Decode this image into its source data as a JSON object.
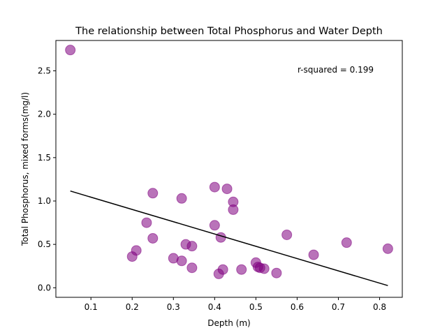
{
  "chart_data": {
    "type": "scatter",
    "title": "The relationship between Total Phosphorus and Water Depth",
    "xlabel": "Depth (m)",
    "ylabel": "Total Phosphorus, mixed forms(mg/l)",
    "xlim": [
      0.015,
      0.855
    ],
    "ylim": [
      -0.11,
      2.85
    ],
    "x_ticks": [
      0.1,
      0.2,
      0.3,
      0.4,
      0.5,
      0.6,
      0.7,
      0.8
    ],
    "x_tick_labels": [
      "0.1",
      "0.2",
      "0.3",
      "0.4",
      "0.5",
      "0.6",
      "0.7",
      "0.8"
    ],
    "y_ticks": [
      0.0,
      0.5,
      1.0,
      1.5,
      2.0,
      2.5
    ],
    "y_tick_labels": [
      "0.0",
      "0.5",
      "1.0",
      "1.5",
      "2.0",
      "2.5"
    ],
    "annotation": "r-squared = 0.199",
    "grid": false,
    "marker_color": "#800080",
    "line_color": "#000000",
    "points": [
      {
        "x": 0.05,
        "y": 2.74
      },
      {
        "x": 0.2,
        "y": 0.36
      },
      {
        "x": 0.21,
        "y": 0.43
      },
      {
        "x": 0.235,
        "y": 0.75
      },
      {
        "x": 0.25,
        "y": 1.09
      },
      {
        "x": 0.25,
        "y": 0.57
      },
      {
        "x": 0.3,
        "y": 0.34
      },
      {
        "x": 0.32,
        "y": 1.03
      },
      {
        "x": 0.32,
        "y": 0.31
      },
      {
        "x": 0.33,
        "y": 0.5
      },
      {
        "x": 0.345,
        "y": 0.48
      },
      {
        "x": 0.345,
        "y": 0.23
      },
      {
        "x": 0.4,
        "y": 1.16
      },
      {
        "x": 0.4,
        "y": 0.72
      },
      {
        "x": 0.41,
        "y": 0.16
      },
      {
        "x": 0.415,
        "y": 0.58
      },
      {
        "x": 0.42,
        "y": 0.21
      },
      {
        "x": 0.43,
        "y": 1.14
      },
      {
        "x": 0.445,
        "y": 0.99
      },
      {
        "x": 0.445,
        "y": 0.9
      },
      {
        "x": 0.465,
        "y": 0.21
      },
      {
        "x": 0.5,
        "y": 0.29
      },
      {
        "x": 0.505,
        "y": 0.24
      },
      {
        "x": 0.51,
        "y": 0.23
      },
      {
        "x": 0.52,
        "y": 0.22
      },
      {
        "x": 0.55,
        "y": 0.17
      },
      {
        "x": 0.575,
        "y": 0.61
      },
      {
        "x": 0.64,
        "y": 0.38
      },
      {
        "x": 0.72,
        "y": 0.52
      },
      {
        "x": 0.82,
        "y": 0.45
      }
    ],
    "regression_line": {
      "x": [
        0.05,
        0.82
      ],
      "y": [
        1.115,
        0.025
      ]
    }
  }
}
